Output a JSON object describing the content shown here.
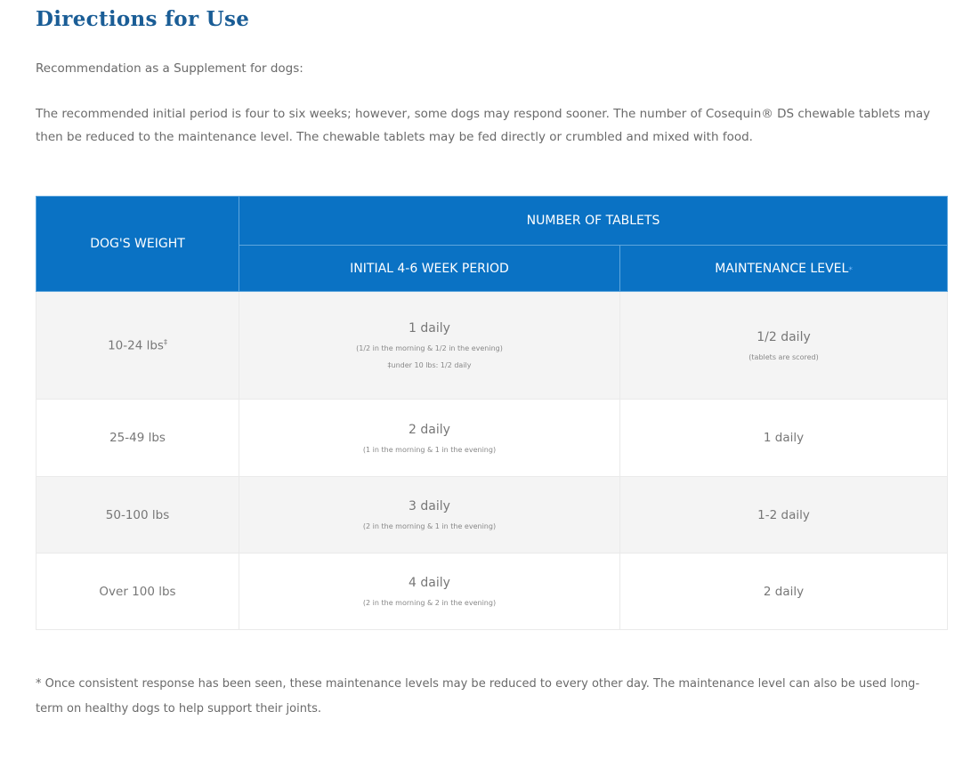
{
  "title": "Directions for Use",
  "intro": "Recommendation as a Supplement for dogs:",
  "description": "The recommended initial period is four to six weeks; however, some dogs may respond sooner. The number of Cosequin® DS chewable tablets may then be reduced to the maintenance level. The chewable tablets may be fed directly or crumbled and mixed with food.",
  "table": {
    "col_weight": "DOG'S WEIGHT",
    "col_group": "NUMBER OF TABLETS",
    "col_initial": "INITIAL 4-6 WEEK PERIOD",
    "col_maint": "MAINTENANCE LEVEL",
    "maint_mark": "*",
    "rows": [
      {
        "weight": "10-24 lbs",
        "weight_mark": "‡",
        "initial": "1 daily",
        "initial_note": "(1/2 in the morning & 1/2 in the evening)",
        "initial_note2": "‡under 10 lbs: 1/2 daily",
        "maint": "1/2 daily",
        "maint_note": "(tablets are scored)"
      },
      {
        "weight": "25-49 lbs",
        "initial": "2 daily",
        "initial_note": "(1 in the morning & 1 in the evening)",
        "maint": "1 daily"
      },
      {
        "weight": "50-100 lbs",
        "initial": "3 daily",
        "initial_note": "(2 in the morning & 1 in the evening)",
        "maint": "1-2 daily"
      },
      {
        "weight": "Over 100 lbs",
        "initial": "4 daily",
        "initial_note": "(2 in the morning & 2 in the evening)",
        "maint": "2 daily"
      }
    ]
  },
  "footnote": "* Once consistent response has been seen, these maintenance levels may be reduced to every other day. The maintenance level can also be used long-term on healthy dogs to help support their joints."
}
